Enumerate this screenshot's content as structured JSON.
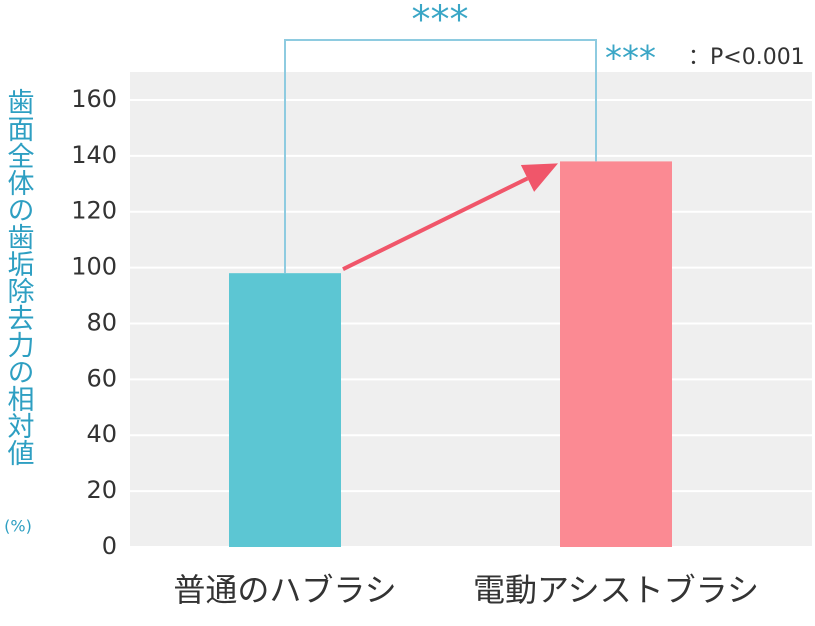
{
  "chart_data": {
    "type": "bar",
    "y_label": "歯面全体の歯垢除去力の相対値",
    "y_unit": "(%)",
    "categories": [
      "普通のハブラシ",
      "電動アシストブラシ"
    ],
    "values": [
      98,
      138
    ],
    "colors": [
      "#5cc6d3",
      "#fb8a93"
    ],
    "ylim": [
      0,
      170
    ],
    "yticks": [
      0,
      20,
      40,
      60,
      80,
      100,
      120,
      140,
      160
    ],
    "grid": true,
    "significance": "***",
    "significance_note_mark": "***",
    "significance_note": "：P<0.001"
  }
}
